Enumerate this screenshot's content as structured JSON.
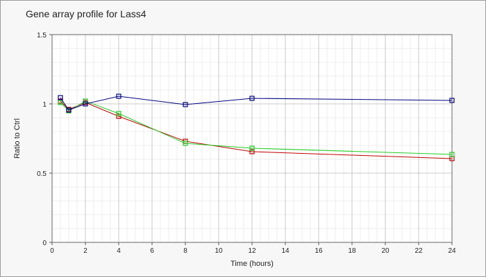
{
  "chart_data": {
    "type": "line",
    "title": "Gene array profile for Lass4",
    "xlabel": "Time (hours)",
    "ylabel": "Ratio to Ctrl",
    "xlim": [
      0,
      24
    ],
    "ylim": [
      0,
      1.5
    ],
    "x_ticks": [
      "0",
      "2",
      "4",
      "6",
      "8",
      "10",
      "12",
      "14",
      "16",
      "18",
      "20",
      "22",
      "24"
    ],
    "y_ticks": [
      "0",
      "0.5",
      "1",
      "1.5"
    ],
    "grid": true,
    "legend": "none",
    "series": [
      {
        "color": "#c00000",
        "x": [
          0.5,
          1,
          2,
          4,
          8,
          12,
          24
        ],
        "values": [
          1.02,
          0.96,
          1.01,
          0.91,
          0.73,
          0.655,
          0.605
        ]
      },
      {
        "color": "#22cc22",
        "x": [
          0.5,
          1,
          2,
          4,
          8,
          12,
          24
        ],
        "values": [
          1.01,
          0.95,
          1.02,
          0.93,
          0.715,
          0.68,
          0.635
        ]
      },
      {
        "color": "#00007f",
        "x": [
          0.5,
          1,
          2,
          4,
          8,
          12,
          24
        ],
        "values": [
          1.045,
          0.955,
          1.0,
          1.055,
          0.995,
          1.04,
          1.025
        ]
      }
    ]
  }
}
